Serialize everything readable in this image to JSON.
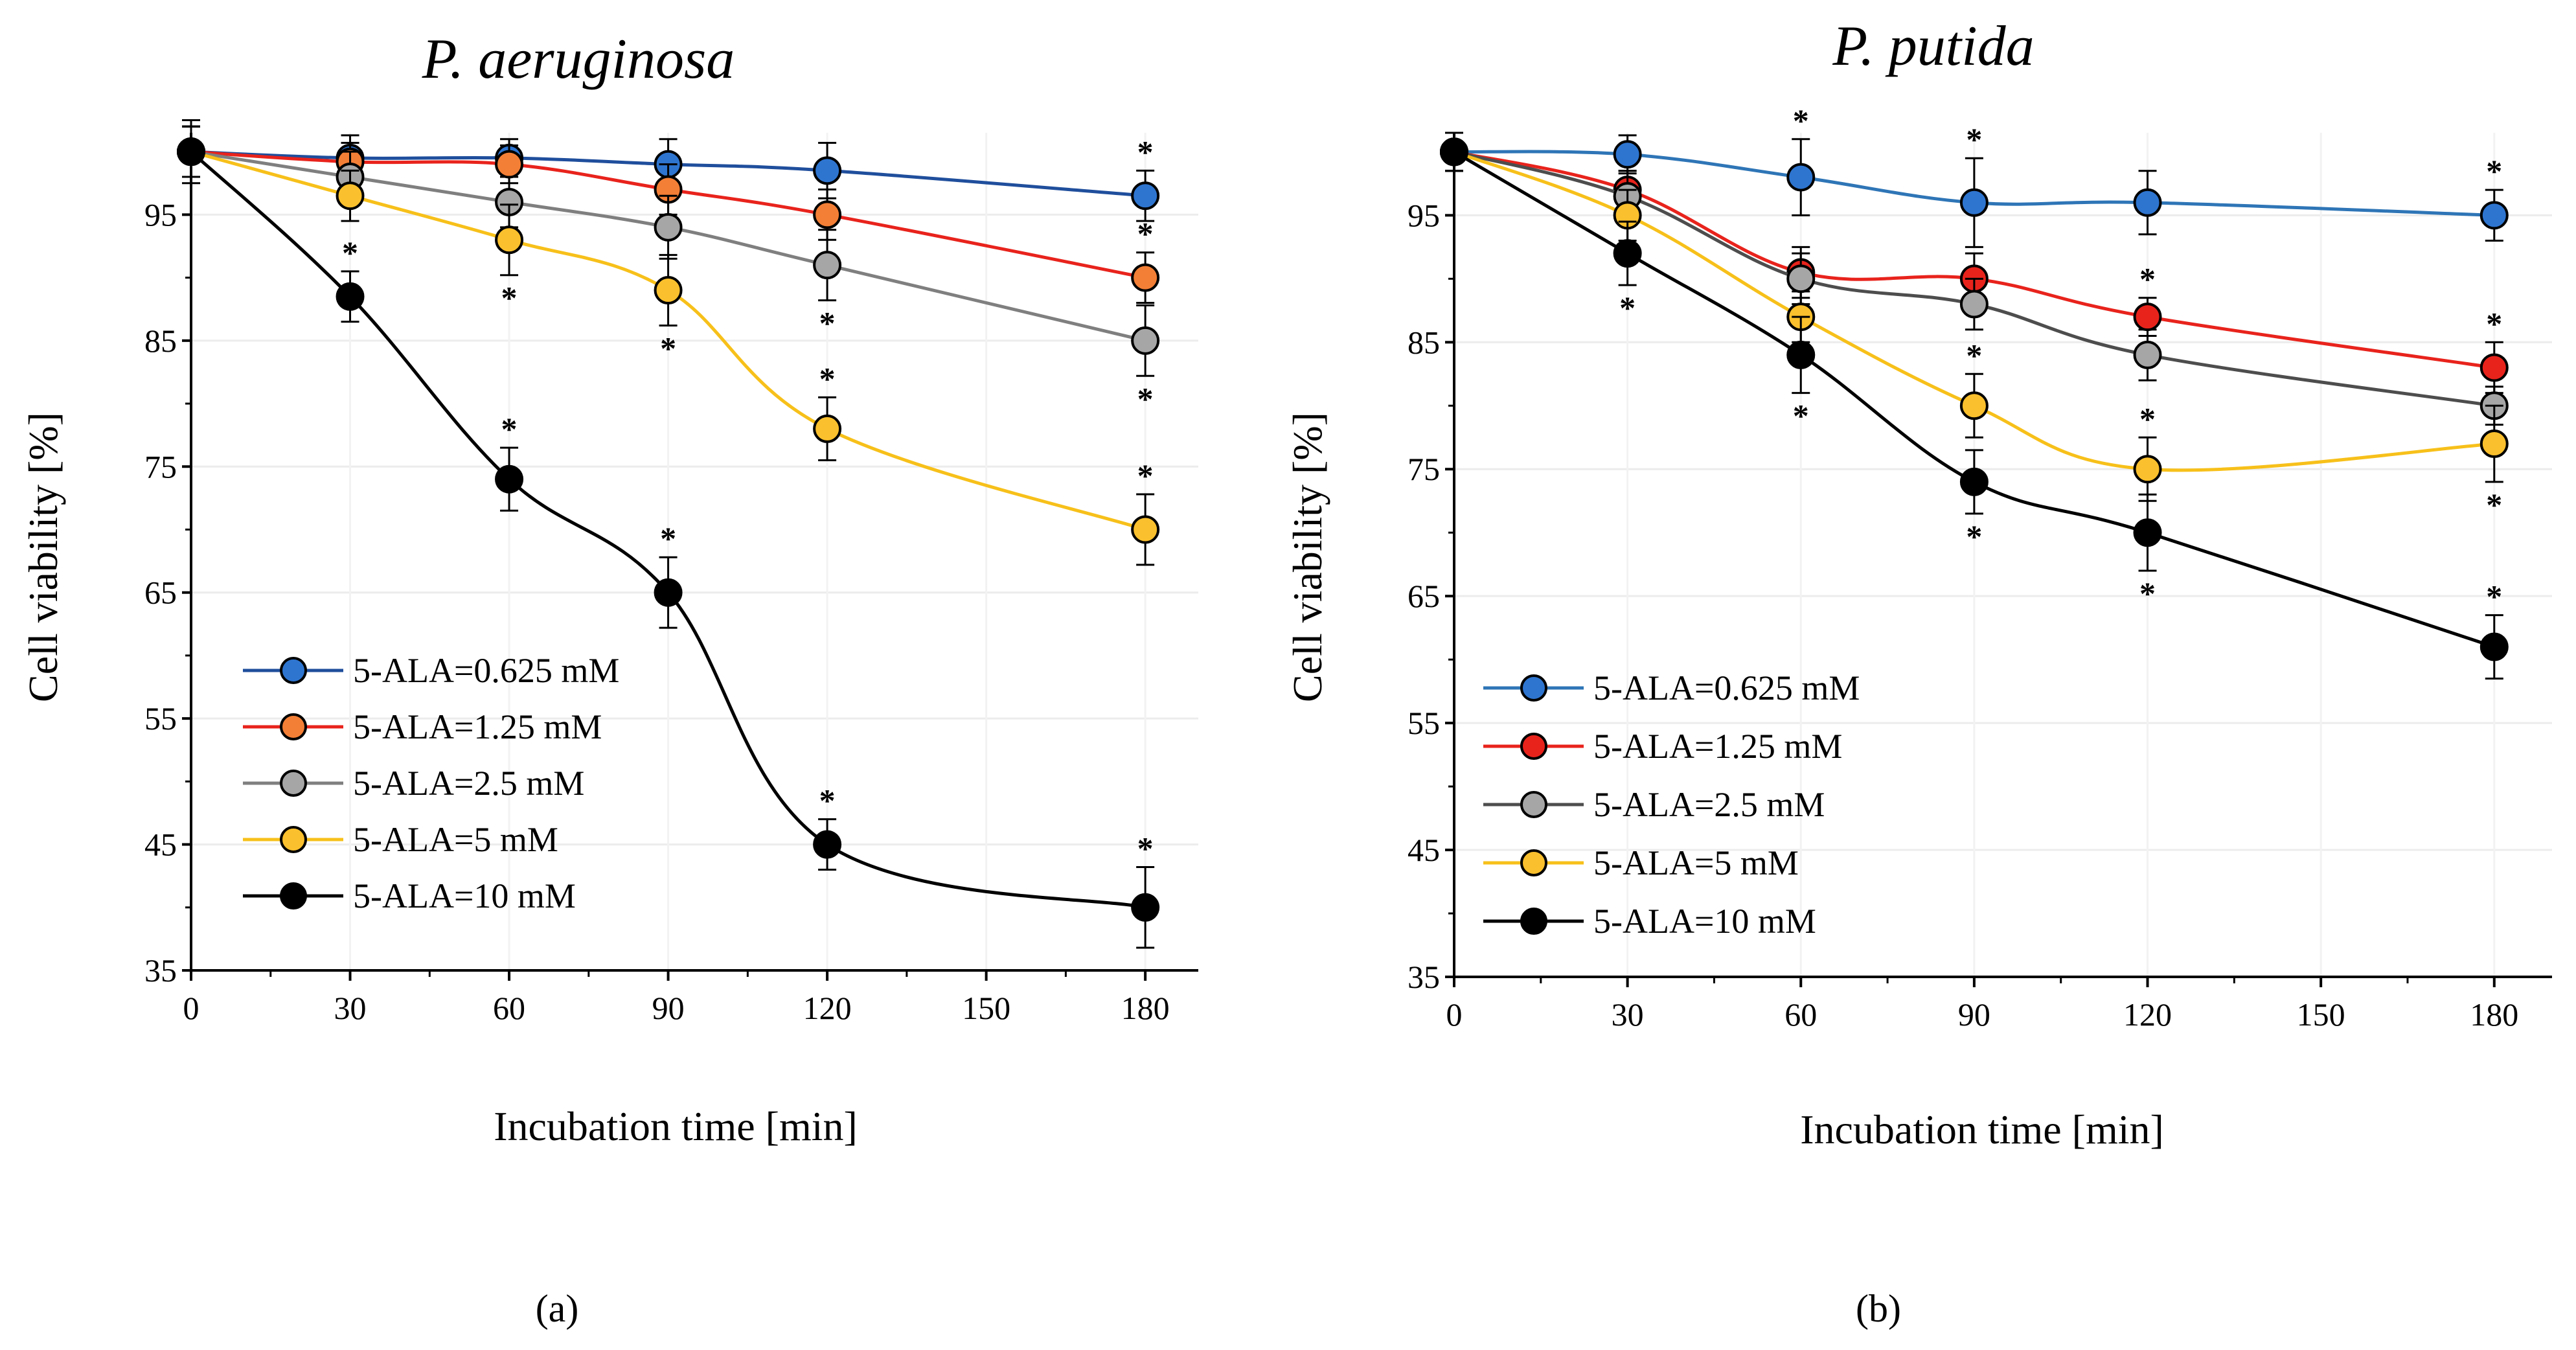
{
  "figure": {
    "panel_a_label": "(a)",
    "panel_b_label": "(b)"
  },
  "chart_data": [
    {
      "type": "line",
      "title": "P. aeruginosa",
      "xlabel": "Incubation time [min]",
      "ylabel": "Cell viability [%]",
      "xlim": [
        0,
        190
      ],
      "ylim": [
        35,
        101.5
      ],
      "xticks": [
        0,
        30,
        60,
        90,
        120,
        150,
        180
      ],
      "yticks": [
        35,
        45,
        55,
        65,
        75,
        85,
        95
      ],
      "grid": true,
      "legend_position": "lower-left",
      "x": [
        0,
        30,
        60,
        90,
        120,
        180
      ],
      "series": [
        {
          "name": "5-ALA=0.625 mM",
          "line_color": "#1f4e9c",
          "marker_color": "#2e75d0",
          "values": [
            100,
            99.5,
            99.5,
            99,
            98.5,
            96.5
          ],
          "errors": [
            2.5,
            1.8,
            1.5,
            2,
            2.2,
            2
          ],
          "stars": [
            "",
            "",
            "",
            "",
            "",
            "above"
          ]
        },
        {
          "name": "5-ALA=1.25 mM",
          "line_color": "#e8231c",
          "marker_color": "#f37f36",
          "values": [
            100,
            99.2,
            99,
            97,
            95,
            90
          ],
          "errors": [
            2,
            1.5,
            1.5,
            2,
            2,
            2
          ],
          "stars": [
            "",
            "",
            "",
            "",
            "",
            "above"
          ]
        },
        {
          "name": "5-ALA=2.5 mM",
          "line_color": "#7f7f7f",
          "marker_color": "#a6a6a6",
          "values": [
            100,
            98,
            96,
            94,
            91,
            85
          ],
          "errors": [
            2,
            2,
            2,
            2.5,
            2.8,
            2.8
          ],
          "stars": [
            "",
            "",
            "",
            "",
            "below",
            "below"
          ]
        },
        {
          "name": "5-ALA=5 mM",
          "line_color": "#f7c01a",
          "marker_color": "#fbc02d",
          "values": [
            100,
            96.5,
            93,
            89,
            78,
            70
          ],
          "errors": [
            2,
            2,
            2.8,
            2.8,
            2.5,
            2.8
          ],
          "stars": [
            "",
            "",
            "below",
            "below",
            "above",
            "above"
          ]
        },
        {
          "name": "5-ALA=10 mM",
          "line_color": "#000000",
          "marker_color": "#000000",
          "values": [
            100,
            88.5,
            74,
            65,
            45,
            40
          ],
          "errors": [
            2,
            2,
            2.5,
            2.8,
            2,
            3.2
          ],
          "stars": [
            "",
            "above",
            "above",
            "above",
            "above",
            "above"
          ]
        }
      ]
    },
    {
      "type": "line",
      "title": "P. putida",
      "xlabel": "Incubation time [min]",
      "ylabel": "Cell viability [%]",
      "xlim": [
        0,
        190
      ],
      "ylim": [
        35,
        101.5
      ],
      "xticks": [
        0,
        30,
        60,
        90,
        120,
        150,
        180
      ],
      "yticks": [
        35,
        45,
        55,
        65,
        75,
        85,
        95
      ],
      "grid": true,
      "legend_position": "lower-left",
      "x": [
        0,
        30,
        60,
        90,
        120,
        180
      ],
      "series": [
        {
          "name": "5-ALA=0.625 mM",
          "line_color": "#2e75b6",
          "marker_color": "#2e75d0",
          "values": [
            100,
            99.8,
            98,
            96,
            96,
            95
          ],
          "errors": [
            1.5,
            1.5,
            3,
            3.5,
            2.5,
            2
          ],
          "stars": [
            "",
            "",
            "above",
            "above",
            "",
            "above"
          ]
        },
        {
          "name": "5-ALA=1.25 mM",
          "line_color": "#e8231c",
          "marker_color": "#e8231c",
          "values": [
            100,
            97,
            90.5,
            90,
            87,
            83
          ],
          "errors": [
            1.5,
            1.5,
            2,
            2,
            1.5,
            2
          ],
          "stars": [
            "",
            "",
            "",
            "",
            "above",
            "above"
          ]
        },
        {
          "name": "5-ALA=2.5 mM",
          "line_color": "#4d4d4d",
          "marker_color": "#a6a6a6",
          "values": [
            100,
            96.5,
            90,
            88,
            84,
            80
          ],
          "errors": [
            1.5,
            2,
            2,
            2,
            2,
            1.5
          ],
          "stars": [
            "",
            "",
            "",
            "",
            "",
            ""
          ]
        },
        {
          "name": "5-ALA=5 mM",
          "line_color": "#f7c01a",
          "marker_color": "#fbc02d",
          "values": [
            100,
            95,
            87,
            80,
            75,
            77
          ],
          "errors": [
            1.5,
            2,
            2,
            2.5,
            2.5,
            3
          ],
          "stars": [
            "",
            "",
            "",
            "above",
            "above",
            "below"
          ]
        },
        {
          "name": "5-ALA=10 mM",
          "line_color": "#000000",
          "marker_color": "#000000",
          "values": [
            100,
            92,
            84,
            74,
            70,
            61
          ],
          "errors": [
            1.5,
            2.5,
            3,
            2.5,
            3,
            2.5
          ],
          "stars": [
            "",
            "below",
            "below",
            "below",
            "below",
            "above"
          ]
        }
      ]
    }
  ]
}
